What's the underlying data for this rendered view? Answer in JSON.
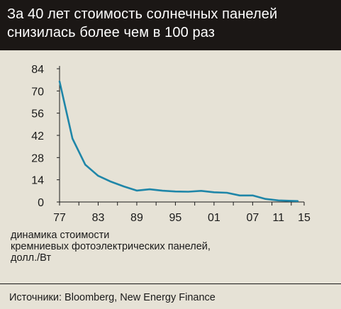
{
  "title_lines": [
    "За 40 лет стоимость солнечных панелей",
    "снизилась более чем в 100 раз"
  ],
  "ylabel_lines": [
    "динамика стоимости",
    "кремниевых фотоэлектрических панелей,",
    "долл./Вт"
  ],
  "source": "Источники: Bloomberg, New Energy Finance",
  "colors": {
    "line": "#1f86a8",
    "header_bg": "#1b1715",
    "background": "#e6e2d6"
  },
  "chart_data": {
    "type": "line",
    "title": "За 40 лет стоимость солнечных панелей снизилась более чем в 100 раз",
    "ylabel": "динамика стоимости кремниевых фотоэлектрических панелей, долл./Вт",
    "xlabel": "",
    "x_ticks": [
      "77",
      "83",
      "89",
      "95",
      "01",
      "07",
      "15"
    ],
    "x_tick_years": [
      1977,
      1983,
      1989,
      1995,
      2001,
      2007,
      2015
    ],
    "x_minor_ticks": [
      1980,
      1986,
      1992,
      1998,
      2004,
      2010,
      2013
    ],
    "extra_x_label": {
      "label": "11",
      "year": 2011
    },
    "y_ticks": [
      0,
      14,
      28,
      42,
      56,
      70,
      84
    ],
    "xlim": [
      1977,
      2015
    ],
    "ylim": [
      0,
      84
    ],
    "grid": false,
    "series": [
      {
        "x": [
          1977,
          1979,
          1981,
          1983,
          1985,
          1987,
          1989,
          1991,
          1993,
          1995,
          1997,
          1999,
          2001,
          2003,
          2005,
          2007,
          2009,
          2011,
          2013,
          2014
        ],
        "y": [
          76,
          40,
          23.5,
          16.5,
          12.8,
          9.8,
          7.2,
          8.0,
          7.1,
          6.6,
          6.5,
          7.0,
          6.1,
          5.8,
          4.1,
          4.1,
          1.9,
          1.0,
          0.7,
          0.6
        ]
      }
    ]
  }
}
